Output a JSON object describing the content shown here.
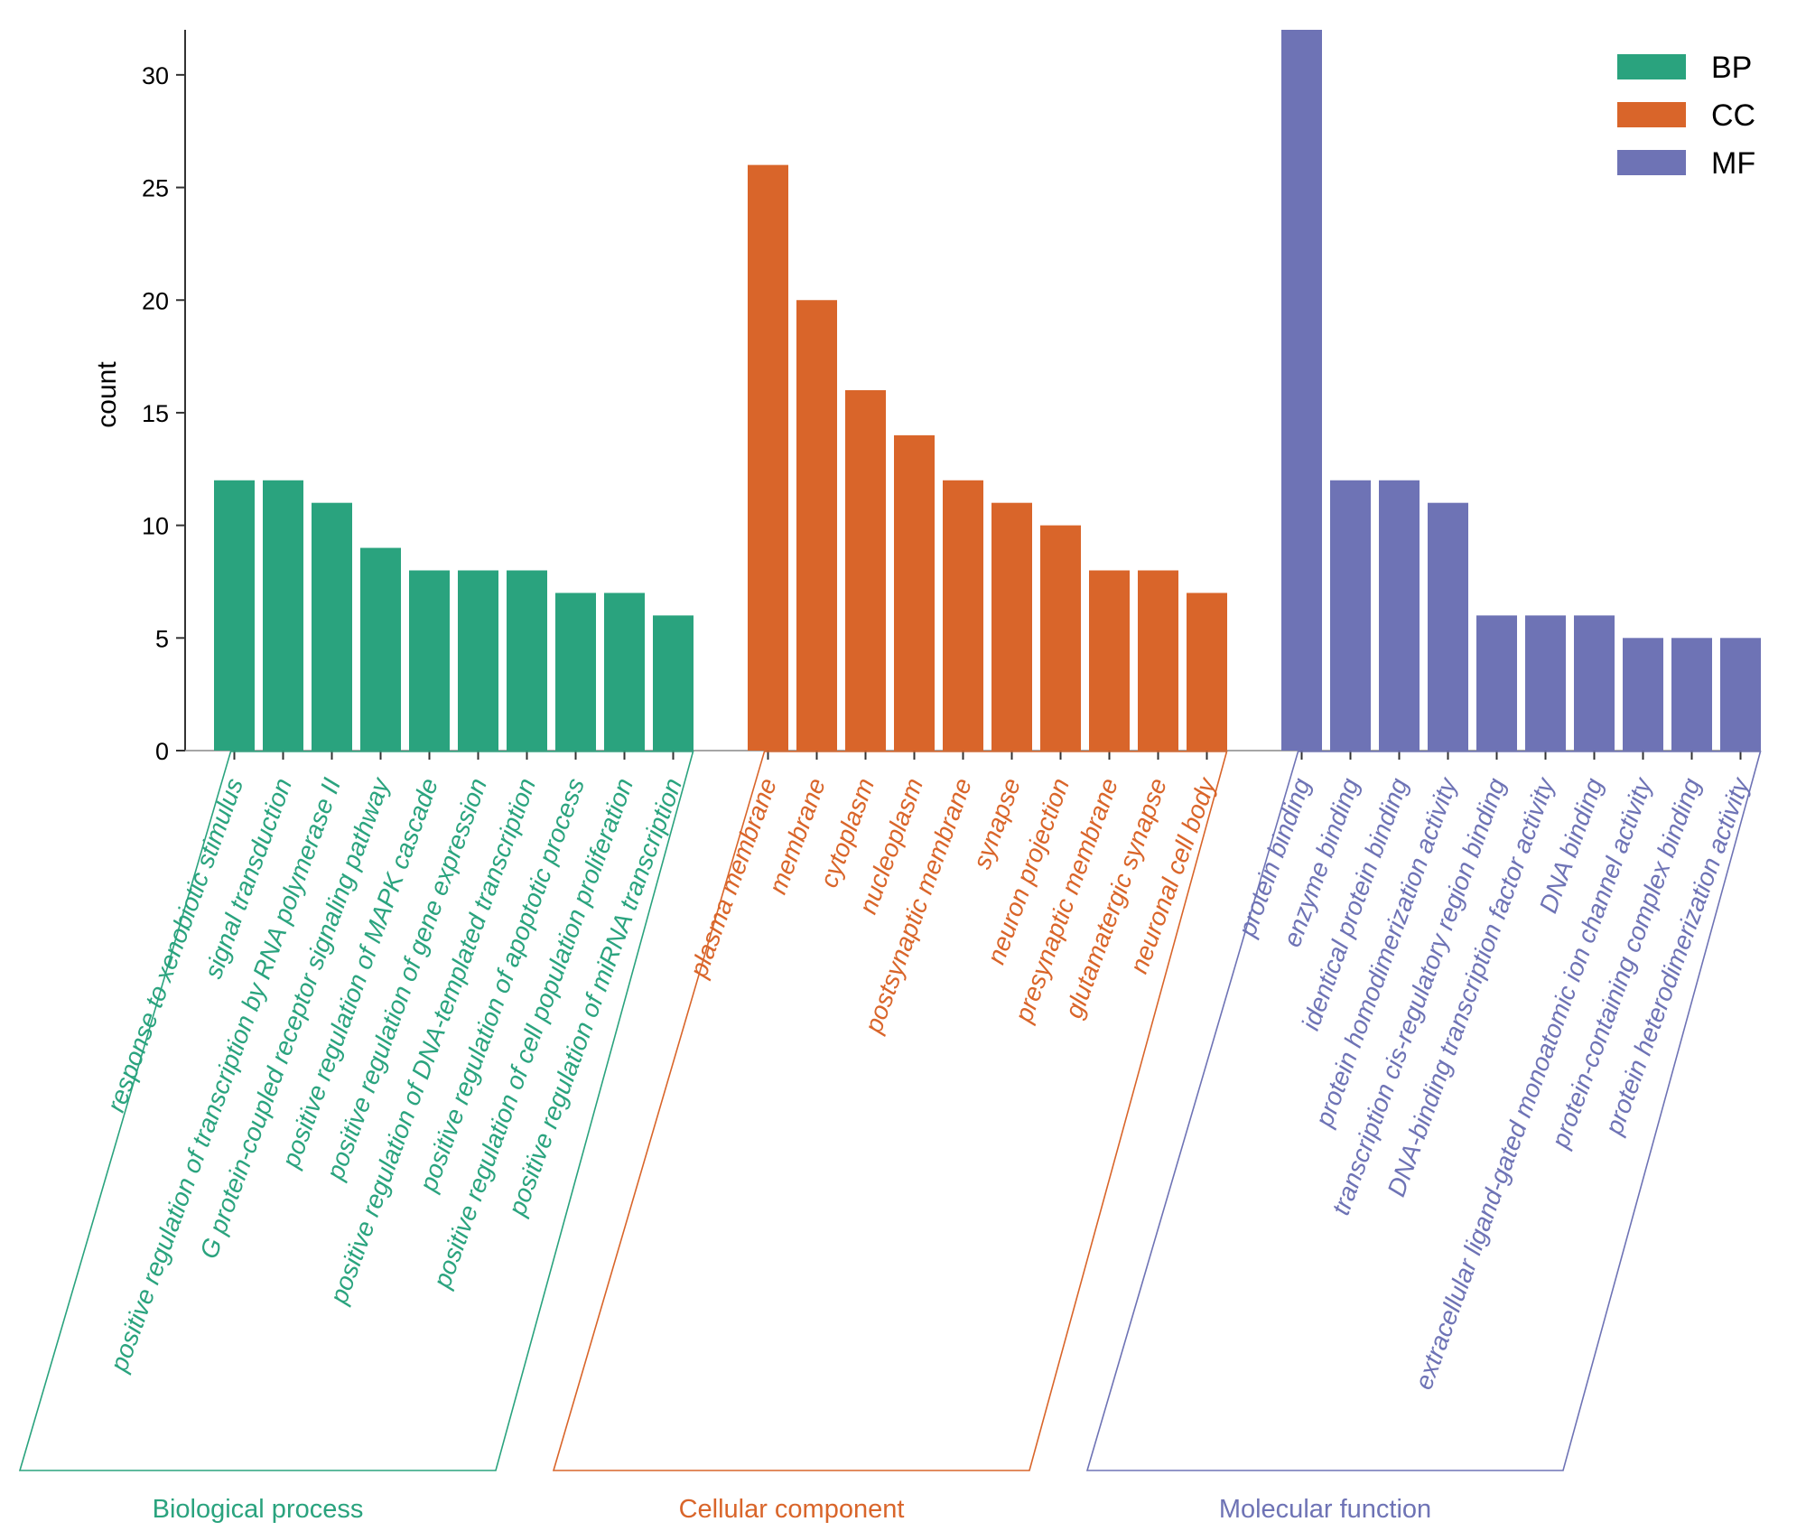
{
  "chart_data": {
    "type": "bar",
    "ylabel": "count",
    "ylim": [
      0,
      32
    ],
    "yticks": [
      0,
      5,
      10,
      15,
      20,
      25,
      30
    ],
    "legend_position": "top-right",
    "series": [
      {
        "name": "BP",
        "group_label": "Biological process",
        "color": "#2aa37e",
        "categories": [
          "response to xenobiotic stimulus",
          "signal transduction",
          "positive regulation of transcription by RNA polymerase II",
          "G protein-coupled receptor signaling pathway",
          "positive regulation of MAPK cascade",
          "positive regulation of gene expression",
          "positive regulation of DNA-templated transcription",
          "positive regulation of apoptotic process",
          "positive regulation of cell population proliferation",
          "positive regulation of miRNA transcription"
        ],
        "values": [
          12,
          12,
          11,
          9,
          8,
          8,
          8,
          7,
          7,
          6
        ]
      },
      {
        "name": "CC",
        "group_label": "Cellular component",
        "color": "#d9652a",
        "categories": [
          "plasma membrane",
          "membrane",
          "cytoplasm",
          "nucleoplasm",
          "postsynaptic membrane",
          "synapse",
          "neuron projection",
          "presynaptic membrane",
          "glutamatergic synapse",
          "neuronal cell body"
        ],
        "values": [
          26,
          20,
          16,
          14,
          12,
          11,
          10,
          8,
          8,
          7
        ]
      },
      {
        "name": "MF",
        "group_label": "Molecular function",
        "color": "#6e73b5",
        "categories": [
          "protein binding",
          "enzyme binding",
          "identical protein binding",
          "protein homodimerization activity",
          "transcription cis-regulatory region binding",
          "DNA-binding transcription factor activity",
          "DNA binding",
          "extracellular ligand-gated monoatomic ion channel activity",
          "protein-containing complex binding",
          "protein heterodimerization activity"
        ],
        "values": [
          32,
          12,
          12,
          11,
          6,
          6,
          6,
          5,
          5,
          5
        ]
      }
    ]
  }
}
